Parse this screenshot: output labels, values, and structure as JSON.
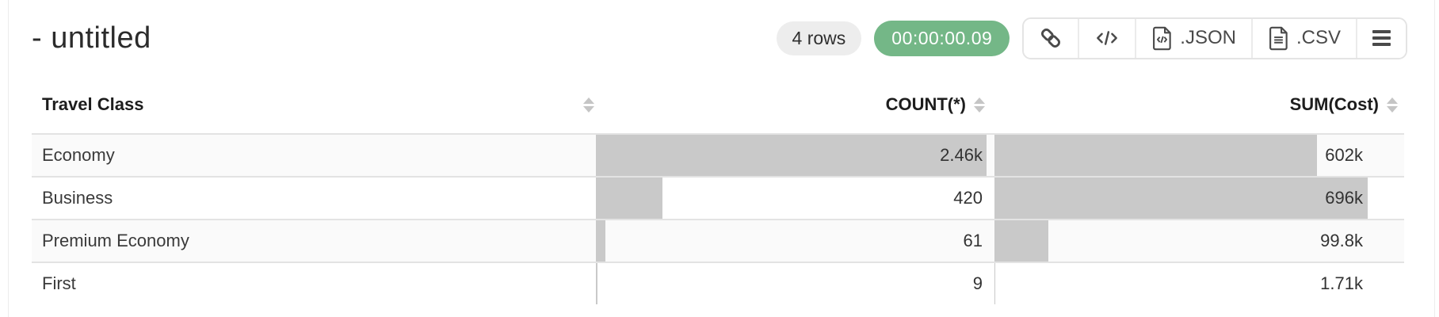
{
  "header": {
    "title": "- untitled",
    "row_count_badge": "4 rows",
    "timer_badge": "00:00:00.09",
    "export_json_label": ".JSON",
    "export_csv_label": ".CSV"
  },
  "icons": {
    "link": "chain-link",
    "code": "angle-brackets",
    "json_file": "file-with-code",
    "csv_file": "file-with-lines",
    "menu": "hamburger",
    "sort": "up-down-triangles"
  },
  "colors": {
    "accent_green": "#74b787",
    "badge_bg": "#ededed",
    "bar_gray": "#c9c9c9",
    "stripe": "#fafafa",
    "row_border": "#e3e3e3",
    "panel_border": "#ececec"
  },
  "table": {
    "columns": [
      {
        "label": "Travel Class",
        "align": "left",
        "sortable": true
      },
      {
        "label": "COUNT(*)",
        "align": "right",
        "sortable": true
      },
      {
        "label": "SUM(Cost)",
        "align": "right",
        "sortable": true
      }
    ],
    "rows": [
      {
        "travel_class": "Economy",
        "count": 2460,
        "count_label": "2.46k",
        "sum_cost": 602000,
        "sum_label": "602k"
      },
      {
        "travel_class": "Business",
        "count": 420,
        "count_label": "420",
        "sum_cost": 696000,
        "sum_label": "696k"
      },
      {
        "travel_class": "Premium Economy",
        "count": 61,
        "count_label": "61",
        "sum_cost": 99800,
        "sum_label": "99.8k"
      },
      {
        "travel_class": "First",
        "count": 9,
        "count_label": "9",
        "sum_cost": 1710,
        "sum_label": "1.71k"
      }
    ]
  }
}
